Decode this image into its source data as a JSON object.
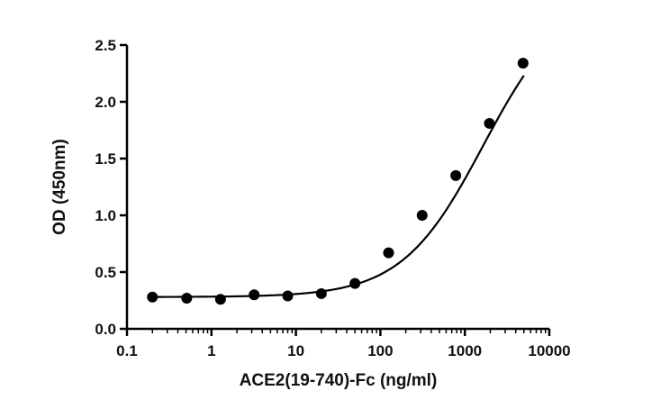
{
  "chart_data": {
    "type": "scatter",
    "title": "",
    "xlabel": "ACE2(19-740)-Fc (ng/ml)",
    "ylabel": "OD (450nm)",
    "x_scale": "log",
    "xlim": [
      0.1,
      10000
    ],
    "ylim": [
      0.0,
      2.5
    ],
    "x_ticks": [
      0.1,
      1,
      10,
      100,
      1000,
      10000
    ],
    "x_tick_labels": [
      "0.1",
      "1",
      "10",
      "100",
      "1000",
      "10000"
    ],
    "y_ticks": [
      0.0,
      0.5,
      1.0,
      1.5,
      2.0,
      2.5
    ],
    "y_tick_labels": [
      "0.0",
      "0.5",
      "1.0",
      "1.5",
      "2.0",
      "2.5"
    ],
    "grid": false,
    "series": [
      {
        "type": "scatter",
        "marker": "circle",
        "color": "#000000",
        "x": [
          0.2,
          0.51,
          1.28,
          3.2,
          8.0,
          20.0,
          50.0,
          125.0,
          312.0,
          781.0,
          1953.0,
          4883.0
        ],
        "y": [
          0.28,
          0.27,
          0.26,
          0.3,
          0.29,
          0.31,
          0.4,
          0.67,
          1.0,
          1.35,
          1.81,
          2.34
        ]
      },
      {
        "type": "line",
        "fit": "4PL",
        "color": "#000000",
        "params": {
          "bottom": 0.28,
          "top": 2.95,
          "ec50": 1650,
          "hill": 0.9
        },
        "x_range": [
          0.2,
          5000
        ]
      }
    ]
  }
}
